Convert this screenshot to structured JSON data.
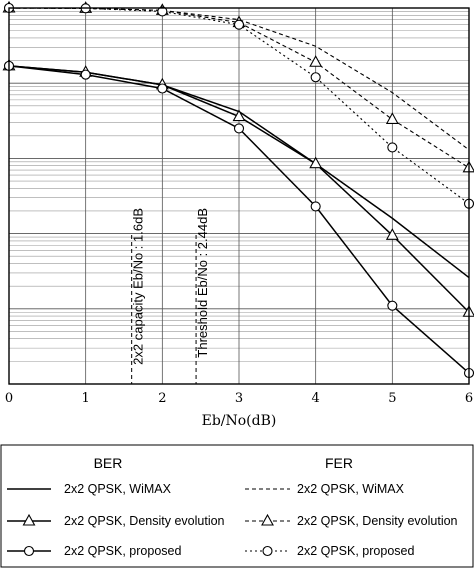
{
  "chart_data": {
    "type": "line",
    "xlabel": "Eb/No(dB)",
    "x_ticks": [
      "0",
      "1",
      "2",
      "3",
      "4",
      "5",
      "6"
    ],
    "xlim": [
      0,
      6
    ],
    "ylim": [
      1e-05,
      1
    ],
    "y_scale": "log",
    "y_tick_labels_visible": false,
    "grid": "major and minor horizontal, major vertical",
    "vertical_markers": [
      {
        "x": 1.6,
        "label": "2x2 capacity Eb/No : 1.6dB",
        "style": "dashed"
      },
      {
        "x": 2.44,
        "label": "Threshold Eb/No : 2.44dB",
        "style": "dashed"
      }
    ],
    "legend": {
      "placement": "below",
      "groups": [
        "BER",
        "FER"
      ],
      "entries": [
        {
          "group": "BER",
          "label": "2x2 QPSK, WiMAX"
        },
        {
          "group": "BER",
          "label": "2x2 QPSK, Density evolution"
        },
        {
          "group": "BER",
          "label": "2x2 QPSK, proposed"
        },
        {
          "group": "FER",
          "label": "2x2 QPSK, WiMAX"
        },
        {
          "group": "FER",
          "label": "2x2 QPSK, Density evolution"
        },
        {
          "group": "FER",
          "label": "2x2 QPSK, proposed"
        }
      ]
    },
    "series": [
      {
        "group": "BER",
        "label_ref": 0,
        "style": "solid",
        "marker": "none",
        "x": [
          0,
          1,
          2,
          3,
          4,
          5,
          6
        ],
        "y": [
          0.17,
          0.14,
          0.095,
          0.042,
          0.0085,
          0.0016,
          0.00026
        ]
      },
      {
        "group": "BER",
        "label_ref": 1,
        "style": "solid",
        "marker": "triangle",
        "x": [
          0,
          1,
          2,
          3,
          4,
          5,
          6
        ],
        "y": [
          0.17,
          0.14,
          0.095,
          0.036,
          0.0085,
          0.00095,
          9e-05
        ]
      },
      {
        "group": "BER",
        "label_ref": 2,
        "style": "solid",
        "marker": "circle",
        "x": [
          0,
          1,
          2,
          3,
          4,
          5,
          6
        ],
        "y": [
          0.17,
          0.13,
          0.085,
          0.025,
          0.0023,
          0.00011,
          1.4e-05
        ]
      },
      {
        "group": "FER",
        "label_ref": 3,
        "style": "dashed",
        "marker": "none",
        "x": [
          0,
          1,
          2,
          3,
          4,
          5,
          6
        ],
        "y": [
          1,
          0.99,
          0.93,
          0.7,
          0.31,
          0.075,
          0.013
        ]
      },
      {
        "group": "FER",
        "label_ref": 4,
        "style": "dashed",
        "marker": "triangle",
        "x": [
          0,
          1,
          2,
          3,
          4,
          5,
          6
        ],
        "y": [
          1,
          0.99,
          0.93,
          0.64,
          0.19,
          0.033,
          0.0075
        ]
      },
      {
        "group": "FER",
        "label_ref": 5,
        "style": "dotted",
        "marker": "circle",
        "x": [
          0,
          1,
          2,
          3,
          4,
          5,
          6
        ],
        "y": [
          1,
          0.99,
          0.9,
          0.6,
          0.12,
          0.014,
          0.0025
        ]
      }
    ]
  }
}
